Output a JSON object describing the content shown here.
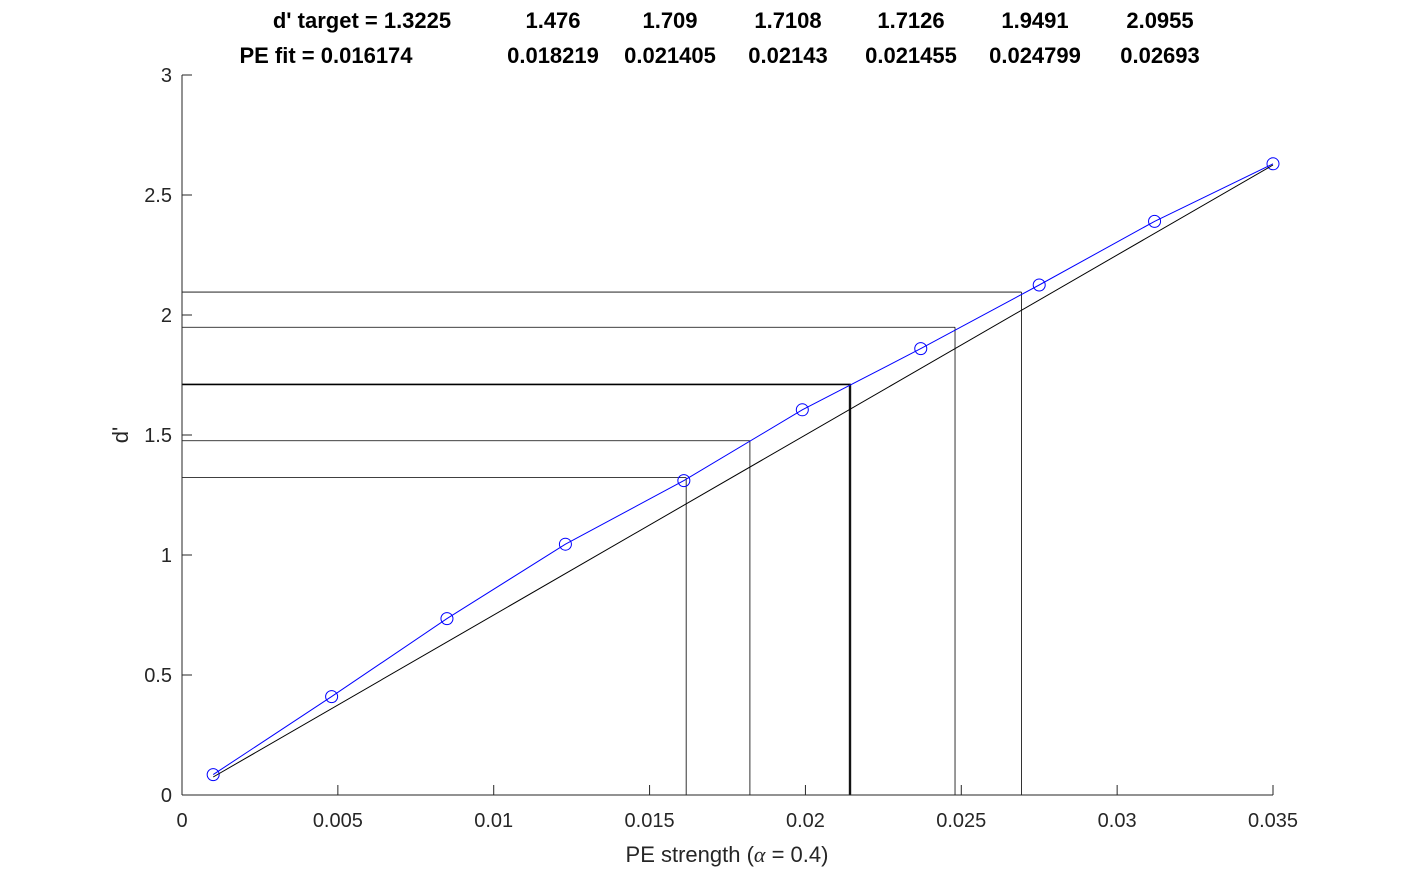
{
  "chart_data": {
    "type": "line",
    "title_lines": [
      {
        "label": "d' target = 1.3225",
        "values": [
          "1.476",
          "1.709",
          "1.7108",
          "1.7126",
          "1.9491",
          "2.0955"
        ]
      },
      {
        "label": "PE fit = 0.016174",
        "values": [
          "0.018219",
          "0.021405",
          "0.02143",
          "0.021455",
          "0.024799",
          "0.02693"
        ]
      }
    ],
    "xlabel_prefix": "PE strength (",
    "xlabel_symbol": "α",
    "xlabel_suffix": " = 0.4)",
    "ylabel": "d'",
    "xlim": [
      0,
      0.035
    ],
    "ylim": [
      0,
      3
    ],
    "xticks": [
      0,
      0.005,
      0.01,
      0.015,
      0.02,
      0.025,
      0.03,
      0.035
    ],
    "xtick_labels": [
      "0",
      "0.005",
      "0.01",
      "0.015",
      "0.02",
      "0.025",
      "0.03",
      "0.035"
    ],
    "yticks": [
      0,
      0.5,
      1,
      1.5,
      2,
      2.5,
      3
    ],
    "ytick_labels": [
      "0",
      "0.5",
      "1",
      "1.5",
      "2",
      "2.5",
      "3"
    ],
    "grid": false,
    "series": [
      {
        "style": "circle-markers-with-line",
        "color": "#0000ff",
        "x": [
          0.001,
          0.0048,
          0.0085,
          0.0123,
          0.0161,
          0.0199,
          0.0237,
          0.0275,
          0.0312,
          0.035
        ],
        "y": [
          0.085,
          0.41,
          0.735,
          1.045,
          1.31,
          1.605,
          1.86,
          2.125,
          2.39,
          2.63
        ]
      },
      {
        "style": "fit-line",
        "color": "#000000",
        "x": [
          0.001,
          0.035
        ],
        "y": [
          0.075,
          2.625
        ]
      }
    ],
    "threshold_targets": [
      {
        "d_prime": 1.3225,
        "pe": 0.016174
      },
      {
        "d_prime": 1.476,
        "pe": 0.018219
      },
      {
        "d_prime": 1.709,
        "pe": 0.021405
      },
      {
        "d_prime": 1.7108,
        "pe": 0.02143
      },
      {
        "d_prime": 1.7126,
        "pe": 0.021455
      },
      {
        "d_prime": 1.9491,
        "pe": 0.024799
      },
      {
        "d_prime": 2.0955,
        "pe": 0.02693
      }
    ],
    "colors": {
      "data": "#0000ff",
      "fit": "#000000",
      "axes": "#262626"
    }
  }
}
